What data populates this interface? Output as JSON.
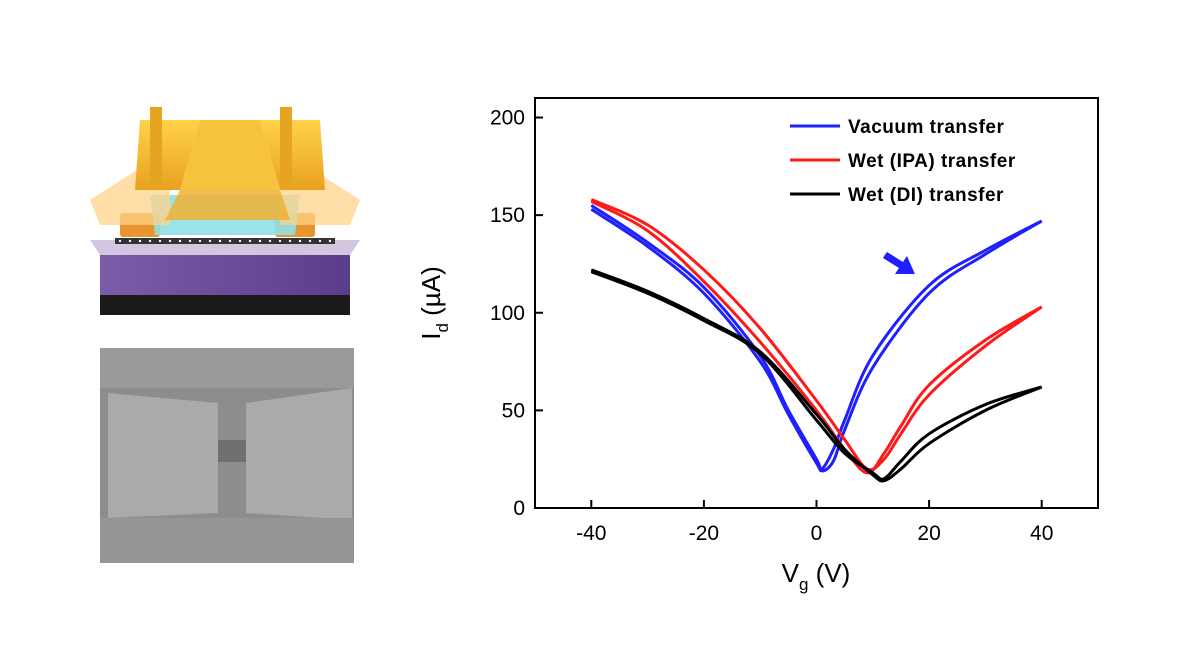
{
  "chart_data": {
    "type": "line",
    "xlabel": {
      "main": "V",
      "sub": "g",
      "unit": " (V)"
    },
    "ylabel": {
      "main": "I",
      "sub": "d",
      "unit": " (µA)"
    },
    "xlim": [
      -50,
      50
    ],
    "ylim": [
      0,
      210
    ],
    "xticks": [
      -40,
      -20,
      0,
      20,
      40
    ],
    "yticks": [
      0,
      50,
      100,
      150,
      200
    ],
    "xtick_labels": [
      "-40",
      "-20",
      "0",
      "20",
      "40"
    ],
    "ytick_labels": [
      "0",
      "50",
      "100",
      "150",
      "200"
    ],
    "grid": false,
    "legend_position": "top-right",
    "series": [
      {
        "name": "Vacuum transfer",
        "color": "#1f1fff",
        "x": [
          -40,
          -30,
          -20,
          -10,
          -5,
          0,
          1,
          3,
          5,
          10,
          20,
          30,
          40
        ],
        "y": [
          155,
          136,
          113,
          78,
          50,
          25,
          19,
          24,
          40,
          72,
          110,
          130,
          147
        ],
        "y_return": [
          153,
          134,
          110,
          75,
          48,
          23,
          20,
          30,
          45,
          78,
          114,
          132,
          147
        ]
      },
      {
        "name": "Wet (IPA) transfer",
        "color": "#ff1a1a",
        "x": [
          -40,
          -30,
          -20,
          -10,
          0,
          5,
          9,
          12,
          15,
          20,
          30,
          40
        ],
        "y": [
          158,
          145,
          122,
          92,
          55,
          35,
          20,
          25,
          38,
          58,
          83,
          103
        ],
        "y_return": [
          157,
          142,
          116,
          85,
          50,
          30,
          18,
          28,
          42,
          63,
          86,
          103
        ]
      },
      {
        "name": "Wet (DI) transfer",
        "color": "#000000",
        "x": [
          -40,
          -30,
          -20,
          -10,
          0,
          5,
          10,
          12,
          15,
          20,
          30,
          40
        ],
        "y": [
          122,
          111,
          97,
          80,
          48,
          30,
          17,
          14,
          20,
          33,
          50,
          62
        ],
        "y_return": [
          121,
          110,
          96,
          79,
          45,
          28,
          18,
          15,
          24,
          38,
          53,
          62
        ]
      }
    ],
    "annotations": [
      {
        "type": "arrow",
        "color": "#1f1fff",
        "x": 15,
        "y": 125,
        "direction": "down-right"
      }
    ]
  }
}
